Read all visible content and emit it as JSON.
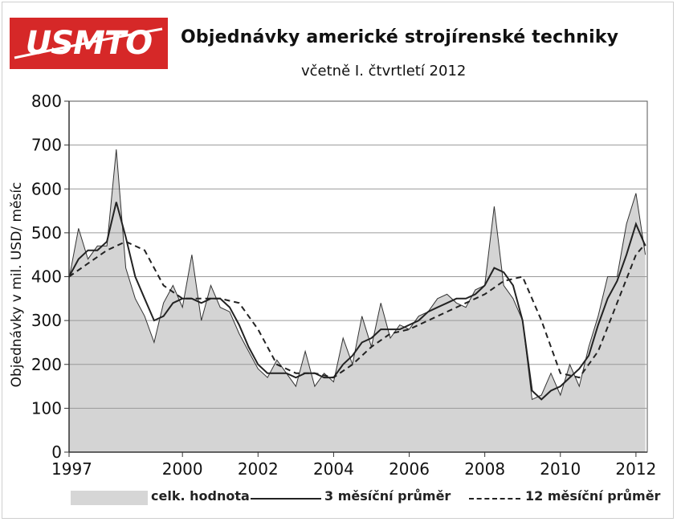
{
  "logo": {
    "text": "USMTO"
  },
  "header": {
    "title": "Objednávky americké strojírenské techniky",
    "subtitle": "včetně I. čtvrtletí 2012"
  },
  "legend": {
    "total": "celk. hodnota",
    "avg3": "3 měsíční průměr",
    "avg12": "12 měsíční průměr"
  },
  "colors": {
    "area": "#d4d4d4",
    "line": "#222222",
    "grid": "#9a9a9a",
    "logo": "#d62828"
  },
  "chart_data": {
    "type": "area",
    "ylabel": "Objednávky v mil. USD/ měsíc",
    "xlabel": "",
    "ylim": [
      0,
      800
    ],
    "xlim": [
      1997,
      2012.3
    ],
    "yticks": [
      0,
      100,
      200,
      300,
      400,
      500,
      600,
      700,
      800
    ],
    "xticks": [
      "1997",
      "2000",
      "2002",
      "2004",
      "2006",
      "2008",
      "2010",
      "2012"
    ],
    "xtick_values": [
      1997,
      2000,
      2002,
      2004,
      2006,
      2008,
      2010,
      2012
    ],
    "grid": "horizontal",
    "legend_position": "bottom",
    "series": [
      {
        "name": "celk. hodnota",
        "style": "filled-area",
        "x": [
          1997.0,
          1997.25,
          1997.5,
          1997.75,
          1998.0,
          1998.25,
          1998.5,
          1998.75,
          1999.0,
          1999.25,
          1999.5,
          1999.75,
          2000.0,
          2000.25,
          2000.5,
          2000.75,
          2001.0,
          2001.25,
          2001.5,
          2001.75,
          2002.0,
          2002.25,
          2002.5,
          2002.75,
          2003.0,
          2003.25,
          2003.5,
          2003.75,
          2004.0,
          2004.25,
          2004.5,
          2004.75,
          2005.0,
          2005.25,
          2005.5,
          2005.75,
          2006.0,
          2006.25,
          2006.5,
          2006.75,
          2007.0,
          2007.25,
          2007.5,
          2007.75,
          2008.0,
          2008.25,
          2008.5,
          2008.75,
          2009.0,
          2009.25,
          2009.5,
          2009.75,
          2010.0,
          2010.25,
          2010.5,
          2010.75,
          2011.0,
          2011.25,
          2011.5,
          2011.75,
          2012.0,
          2012.25
        ],
        "values": [
          395,
          510,
          440,
          470,
          470,
          690,
          420,
          350,
          310,
          250,
          340,
          380,
          330,
          450,
          300,
          380,
          330,
          320,
          270,
          230,
          190,
          170,
          210,
          180,
          150,
          230,
          150,
          180,
          160,
          260,
          200,
          310,
          240,
          340,
          260,
          290,
          280,
          310,
          320,
          350,
          360,
          340,
          330,
          370,
          380,
          560,
          380,
          350,
          300,
          120,
          130,
          180,
          130,
          200,
          150,
          240,
          310,
          400,
          400,
          520,
          590,
          450
        ]
      },
      {
        "name": "3 měsíční průměr",
        "style": "solid",
        "x": [
          1997.0,
          1997.25,
          1997.5,
          1997.75,
          1998.0,
          1998.25,
          1998.5,
          1998.75,
          1999.0,
          1999.25,
          1999.5,
          1999.75,
          2000.0,
          2000.25,
          2000.5,
          2000.75,
          2001.0,
          2001.25,
          2001.5,
          2001.75,
          2002.0,
          2002.25,
          2002.5,
          2002.75,
          2003.0,
          2003.25,
          2003.5,
          2003.75,
          2004.0,
          2004.25,
          2004.5,
          2004.75,
          2005.0,
          2005.25,
          2005.5,
          2005.75,
          2006.0,
          2006.25,
          2006.5,
          2006.75,
          2007.0,
          2007.25,
          2007.5,
          2007.75,
          2008.0,
          2008.25,
          2008.5,
          2008.75,
          2009.0,
          2009.25,
          2009.5,
          2009.75,
          2010.0,
          2010.25,
          2010.5,
          2010.75,
          2011.0,
          2011.25,
          2011.5,
          2011.75,
          2012.0,
          2012.25
        ],
        "values": [
          400,
          440,
          460,
          460,
          480,
          570,
          490,
          400,
          350,
          300,
          310,
          340,
          350,
          350,
          340,
          350,
          350,
          330,
          290,
          240,
          200,
          180,
          180,
          180,
          170,
          180,
          180,
          170,
          170,
          200,
          220,
          250,
          260,
          280,
          280,
          280,
          290,
          300,
          320,
          330,
          340,
          350,
          350,
          360,
          380,
          420,
          410,
          380,
          300,
          140,
          120,
          140,
          150,
          170,
          190,
          220,
          290,
          350,
          390,
          450,
          520,
          470
        ]
      },
      {
        "name": "12 měsíční průměr",
        "style": "dashed",
        "x": [
          1997.0,
          1997.5,
          1998.0,
          1998.5,
          1999.0,
          1999.5,
          2000.0,
          2000.5,
          2001.0,
          2001.5,
          2002.0,
          2002.5,
          2003.0,
          2003.5,
          2004.0,
          2004.5,
          2005.0,
          2005.5,
          2006.0,
          2006.5,
          2007.0,
          2007.5,
          2008.0,
          2008.5,
          2009.0,
          2009.5,
          2010.0,
          2010.5,
          2011.0,
          2011.5,
          2012.0,
          2012.25
        ],
        "values": [
          400,
          430,
          460,
          480,
          460,
          380,
          350,
          350,
          350,
          340,
          280,
          200,
          180,
          180,
          170,
          200,
          240,
          270,
          280,
          300,
          320,
          340,
          360,
          390,
          400,
          300,
          180,
          170,
          230,
          340,
          450,
          475
        ]
      }
    ]
  }
}
